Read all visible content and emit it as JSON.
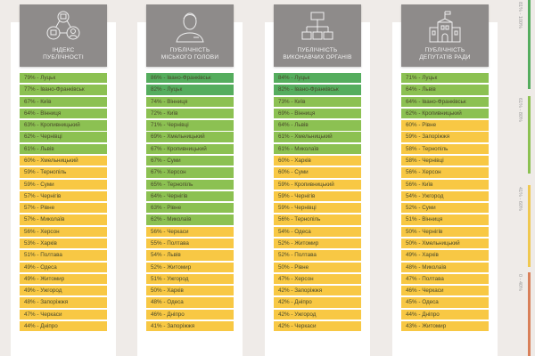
{
  "colors": {
    "dark_green": "#55ad5e",
    "light_green": "#8cc152",
    "yellow": "#f8c844",
    "orange": "#e07f55",
    "card": "#8e8b8a"
  },
  "columns": [
    {
      "title_line1": "Індекс",
      "title_line2": "публічності",
      "icon": "network-people-icon",
      "rows": [
        [
          "79% - Луцьк",
          79
        ],
        [
          "77% - Івано-Франківськ",
          77
        ],
        [
          "67% - Київ",
          67
        ],
        [
          "64% - Вінниця",
          64
        ],
        [
          "63% - Кропивницький",
          63
        ],
        [
          "62% - Чернівці",
          62
        ],
        [
          "61% - Львів",
          61
        ],
        [
          "60% - Хмельницький",
          60
        ],
        [
          "59% - Тернопіль",
          59
        ],
        [
          "59% - Суми",
          59
        ],
        [
          "57% - Чернігів",
          57
        ],
        [
          "57% - Рівне",
          57
        ],
        [
          "57% - Миколаїв",
          57
        ],
        [
          "56% - Херсон",
          56
        ],
        [
          "53% - Харків",
          53
        ],
        [
          "51% - Полтава",
          51
        ],
        [
          "49% - Одеса",
          49
        ],
        [
          "49% - Житомир",
          49
        ],
        [
          "49% - Ужгород",
          49
        ],
        [
          "48% - Запоріжжя",
          48
        ],
        [
          "47% - Черкаси",
          47
        ],
        [
          "44% - Дніпро",
          44
        ]
      ]
    },
    {
      "title_line1": "Публічність",
      "title_line2": "міського голови",
      "icon": "person-icon",
      "rows": [
        [
          "86% - Івано-Франківськ",
          86
        ],
        [
          "82% - Луцьк",
          82
        ],
        [
          "74% - Вінниця",
          74
        ],
        [
          "72% - Київ",
          72
        ],
        [
          "71% - Чернівці",
          71
        ],
        [
          "69% - Хмельницький",
          69
        ],
        [
          "67% - Кропивницький",
          67
        ],
        [
          "67% - Суми",
          67
        ],
        [
          "67% - Херсон",
          67
        ],
        [
          "65% - Тернопіль",
          65
        ],
        [
          "64% - Чернігів",
          64
        ],
        [
          "63% - Рівне",
          63
        ],
        [
          "62% - Миколаїв",
          62
        ],
        [
          "56% - Черкаси",
          56
        ],
        [
          "55% - Полтава",
          55
        ],
        [
          "54% - Львів",
          54
        ],
        [
          "52% - Житомир",
          52
        ],
        [
          "51% - Ужгород",
          51
        ],
        [
          "50% - Харків",
          50
        ],
        [
          "48% - Одеса",
          48
        ],
        [
          "46% - Дніпро",
          46
        ],
        [
          "41% - Запоріжжя",
          41
        ]
      ]
    },
    {
      "title_line1": "Публічність",
      "title_line2": "виконавчих органів",
      "icon": "org-chart-icon",
      "rows": [
        [
          "84% - Луцьк",
          84
        ],
        [
          "82% - Івано-Франківськ",
          82
        ],
        [
          "73% - Київ",
          73
        ],
        [
          "69% - Вінниця",
          69
        ],
        [
          "64% - Львів",
          64
        ],
        [
          "61% - Хмельницький",
          61
        ],
        [
          "61% - Миколаїв",
          61
        ],
        [
          "60% - Харків",
          60
        ],
        [
          "60% - Суми",
          60
        ],
        [
          "59% - Кропивницький",
          59
        ],
        [
          "59% - Чернігів",
          59
        ],
        [
          "59% - Чернівці",
          59
        ],
        [
          "56% - Тернопіль",
          56
        ],
        [
          "54% - Одеса",
          54
        ],
        [
          "52% - Житомир",
          52
        ],
        [
          "52% - Полтава",
          52
        ],
        [
          "50% - Рівне",
          50
        ],
        [
          "47% - Херсон",
          47
        ],
        [
          "42% - Запоріжжя",
          42
        ],
        [
          "42% - Дніпро",
          42
        ],
        [
          "42% - Ужгород",
          42
        ],
        [
          "42% - Черкаси",
          42
        ]
      ]
    },
    {
      "title_line1": "Публічність",
      "title_line2": "депутатів ради",
      "icon": "city-hall-icon",
      "rows": [
        [
          "71% - Луцьк",
          71
        ],
        [
          "64% - Львів",
          64
        ],
        [
          "64% - Івано-Франківськ",
          64
        ],
        [
          "62% - Кропивницький",
          62
        ],
        [
          "60% - Рівне",
          60
        ],
        [
          "59% - Запоріжжя",
          59
        ],
        [
          "58% - Тернопіль",
          58
        ],
        [
          "58% - Чернівці",
          58
        ],
        [
          "56% - Херсон",
          56
        ],
        [
          "56% - Київ",
          56
        ],
        [
          "54% - Ужгород",
          54
        ],
        [
          "52% - Суми",
          52
        ],
        [
          "51% - Вінниця",
          51
        ],
        [
          "50% - Чернігів",
          50
        ],
        [
          "50% - Хмельницький",
          50
        ],
        [
          "49% - Харків",
          49
        ],
        [
          "48% - Миколаїв",
          48
        ],
        [
          "47% - Полтава",
          47
        ],
        [
          "46% - Черкаси",
          46
        ],
        [
          "45% - Одеса",
          45
        ],
        [
          "44% - Дніпро",
          44
        ],
        [
          "43% - Житомир",
          43
        ]
      ]
    }
  ],
  "legend": [
    {
      "label": "81% - 100%",
      "color": "#55ad5e"
    },
    {
      "label": "61% - 80%",
      "color": "#8cc152"
    },
    {
      "label": "41% - 60%",
      "color": "#f0c850"
    },
    {
      "label": "0 - 40%",
      "color": "#d9805a"
    }
  ]
}
